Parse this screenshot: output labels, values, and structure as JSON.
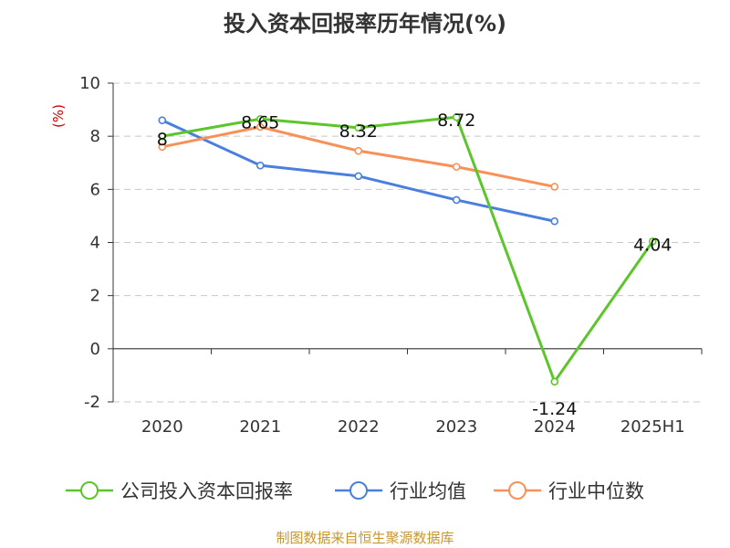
{
  "title": "投入资本回报率历年情况(%)",
  "footer": "制图数据来自恒生聚源数据库",
  "chart_data": {
    "type": "line",
    "title": "投入资本回报率历年情况(%)",
    "ylabel": "(%)",
    "xlabel": "",
    "categories": [
      "2020",
      "2021",
      "2022",
      "2023",
      "2024",
      "2025H1"
    ],
    "ylim": [
      -2,
      10
    ],
    "yticks": [
      -2,
      0,
      2,
      4,
      6,
      8,
      10
    ],
    "grid": true,
    "legend_position": "bottom",
    "series": [
      {
        "name": "公司投入资本回报率",
        "color": "#5cc52c",
        "values": [
          8,
          8.65,
          8.32,
          8.72,
          -1.24,
          4.04
        ],
        "labels": [
          "8",
          "8.65",
          "8.32",
          "8.72",
          "-1.24",
          "4.04"
        ]
      },
      {
        "name": "行业均值",
        "color": "#4a7fde",
        "values": [
          8.6,
          6.9,
          6.5,
          5.6,
          4.8,
          null
        ]
      },
      {
        "name": "行业中位数",
        "color": "#f79158",
        "values": [
          7.6,
          8.35,
          7.45,
          6.85,
          6.1,
          null
        ]
      }
    ]
  }
}
